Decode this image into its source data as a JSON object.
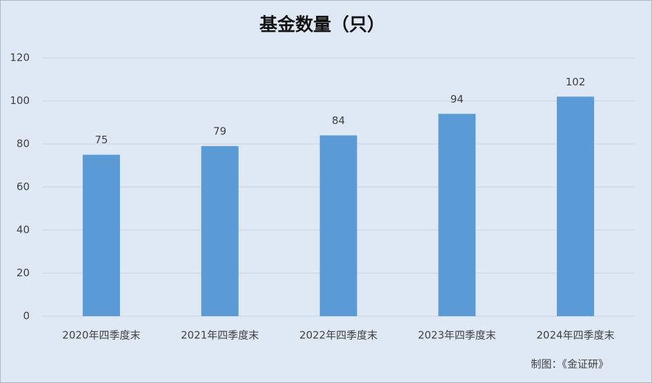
{
  "chart_data": {
    "type": "bar",
    "title": "基金数量（只）",
    "categories": [
      "2020年四季度末",
      "2021年四季度末",
      "2022年四季度末",
      "2023年四季度末",
      "2024年四季度末"
    ],
    "values": [
      75,
      79,
      84,
      94,
      102
    ],
    "color": "#5b9bd5",
    "ylim": [
      0,
      120
    ],
    "yticks": [
      0,
      20,
      40,
      60,
      80,
      100,
      120
    ],
    "grid": true,
    "annotation": "制图：《金证研》"
  }
}
